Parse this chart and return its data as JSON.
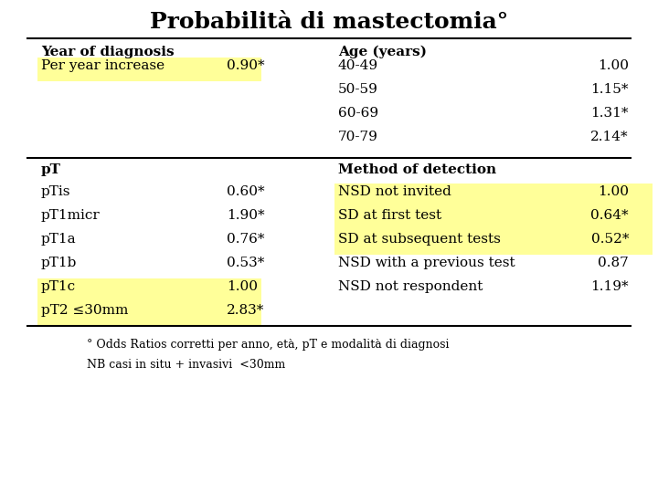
{
  "title": "Probabilità di mastectomia°",
  "title_fontsize": 18,
  "background_color": "#ffffff",
  "yellow": "#ffff99",
  "section1_header_left": "Year of diagnosis",
  "section1_header_right": "Age (years)",
  "rows_left": [
    {
      "label": "Per year increase",
      "value": "0.90*",
      "highlight": true
    }
  ],
  "rows_right_age": [
    {
      "label": "40-49",
      "value": "1.00"
    },
    {
      "label": "50-59",
      "value": "1.15*"
    },
    {
      "label": "60-69",
      "value": "1.31*"
    },
    {
      "label": "70-79",
      "value": "2.14*"
    }
  ],
  "section2_header_left": "pT",
  "section2_header_right": "Method of detection",
  "rows_pt": [
    {
      "label": "pTis",
      "value": "0.60*",
      "highlight": false
    },
    {
      "label": "pT1micr",
      "value": "1.90*",
      "highlight": false
    },
    {
      "label": "pT1a",
      "value": "0.76*",
      "highlight": false
    },
    {
      "label": "pT1b",
      "value": "0.53*",
      "highlight": false
    },
    {
      "label": "pT1c",
      "value": "1.00",
      "highlight": true
    },
    {
      "label": "pT2 ≤30mm",
      "value": "2.83*",
      "highlight": true
    }
  ],
  "rows_method": [
    {
      "label": "NSD not invited",
      "value": "1.00",
      "highlight": true
    },
    {
      "label": "SD at first test",
      "value": "0.64*",
      "highlight": true
    },
    {
      "label": "SD at subsequent tests",
      "value": "0.52*",
      "highlight": true
    },
    {
      "label": "NSD with a previous test",
      "value": "0.87",
      "highlight": false
    },
    {
      "label": "NSD not respondent",
      "value": "1.19*",
      "highlight": false
    }
  ],
  "footnote1": "° Odds Ratios corretti per anno, età, pT e modalità di diagnosi",
  "footnote2": "NB casi in situ + invasivi  <30mm"
}
